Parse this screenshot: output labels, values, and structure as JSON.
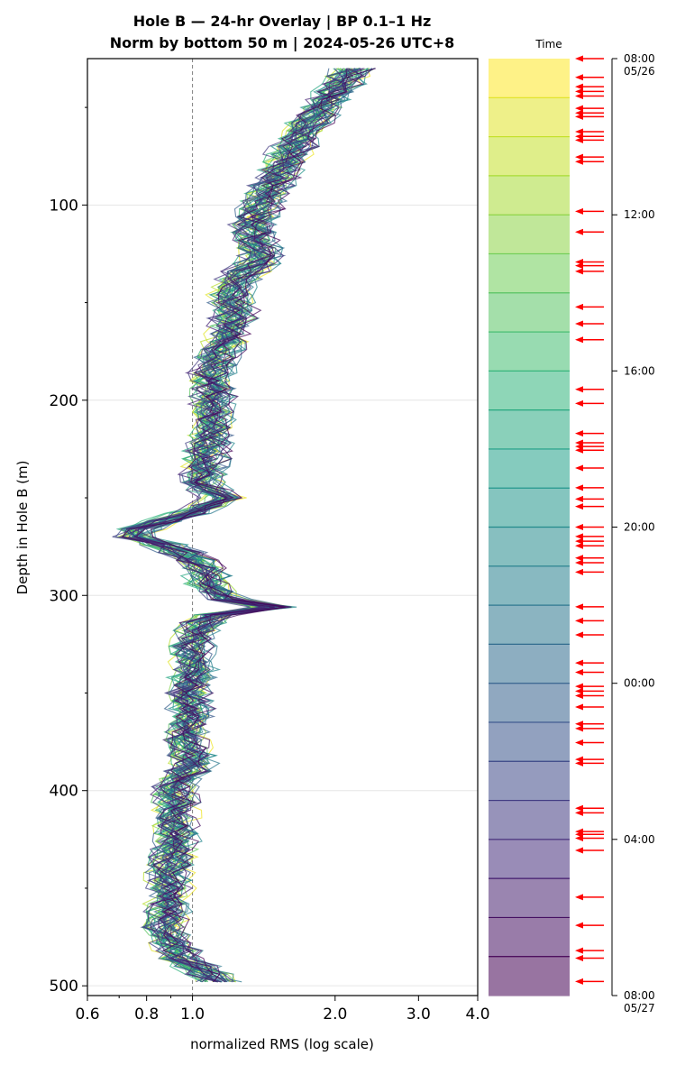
{
  "chart_data": {
    "type": "line",
    "title_line1": "Hole B — 24-hr Overlay  |  BP 0.1–1 Hz",
    "title_line2": "Norm by bottom 50 m  |  2024-05-26 UTC+8",
    "xlabel": "normalized RMS  (log scale)",
    "ylabel": "Depth in Hole B (m)",
    "x_scale": "log",
    "xlim": [
      0.6,
      4.0
    ],
    "ylim": [
      505,
      25
    ],
    "y_inverted": true,
    "grid": "horizontal at major ticks",
    "x_ticks": [
      {
        "value": 0.6,
        "label": "0.6"
      },
      {
        "value": 0.8,
        "label": "0.8"
      },
      {
        "value": 1.0,
        "label": "1.0"
      },
      {
        "value": 2.0,
        "label": "2.0"
      },
      {
        "value": 3.0,
        "label": "3.0"
      },
      {
        "value": 4.0,
        "label": "4.0"
      }
    ],
    "y_ticks": [
      {
        "value": 100,
        "label": "100"
      },
      {
        "value": 200,
        "label": "200"
      },
      {
        "value": 300,
        "label": "300"
      },
      {
        "value": 400,
        "label": "400"
      },
      {
        "value": 500,
        "label": "500"
      }
    ],
    "reference_line_x": 1.0,
    "colormap": "viridis",
    "series_count": 48,
    "profile": {
      "depth": [
        30,
        45,
        60,
        75,
        90,
        100,
        110,
        120,
        128,
        135,
        145,
        155,
        165,
        175,
        185,
        195,
        205,
        215,
        225,
        235,
        243,
        250,
        256,
        262,
        266,
        270,
        275,
        280,
        285,
        290,
        296,
        302,
        306,
        310,
        318,
        328,
        338,
        350,
        362,
        375,
        385,
        392,
        400,
        410,
        420,
        430,
        440,
        450,
        460,
        470,
        480,
        487,
        492,
        497,
        500
      ],
      "rms": [
        2.2,
        1.95,
        1.75,
        1.6,
        1.48,
        1.4,
        1.35,
        1.38,
        1.42,
        1.28,
        1.2,
        1.24,
        1.2,
        1.15,
        1.1,
        1.12,
        1.1,
        1.12,
        1.08,
        1.07,
        1.05,
        1.15,
        1.05,
        0.88,
        0.78,
        0.76,
        0.9,
        1.0,
        1.05,
        1.08,
        1.1,
        1.2,
        1.5,
        1.12,
        1.02,
        1.0,
        1.02,
        0.98,
        1.0,
        0.97,
        1.02,
        0.96,
        0.92,
        0.93,
        0.92,
        0.93,
        0.9,
        0.9,
        0.89,
        0.88,
        0.92,
        0.96,
        1.06,
        1.12,
        1.15
      ]
    },
    "colorbar": {
      "label": "Time",
      "ticks": [
        {
          "label": "08:00",
          "sublabel": "05/26",
          "frac": 0.0
        },
        {
          "label": "12:00",
          "sublabel": "",
          "frac": 0.1667
        },
        {
          "label": "16:00",
          "sublabel": "",
          "frac": 0.3333
        },
        {
          "label": "20:00",
          "sublabel": "",
          "frac": 0.5
        },
        {
          "label": "00:00",
          "sublabel": "",
          "frac": 0.6667
        },
        {
          "label": "04:00",
          "sublabel": "",
          "frac": 0.8333
        },
        {
          "label": "08:00",
          "sublabel": "05/27",
          "frac": 1.0
        }
      ],
      "band_count": 24,
      "arrow_fracs": [
        0.0,
        0.02,
        0.03,
        0.035,
        0.04,
        0.053,
        0.058,
        0.062,
        0.078,
        0.083,
        0.087,
        0.105,
        0.11,
        0.163,
        0.185,
        0.217,
        0.221,
        0.227,
        0.265,
        0.283,
        0.3,
        0.353,
        0.368,
        0.4,
        0.41,
        0.414,
        0.418,
        0.437,
        0.458,
        0.47,
        0.478,
        0.5,
        0.51,
        0.515,
        0.52,
        0.533,
        0.538,
        0.548,
        0.585,
        0.6,
        0.615,
        0.645,
        0.655,
        0.67,
        0.675,
        0.68,
        0.692,
        0.71,
        0.715,
        0.73,
        0.748,
        0.752,
        0.8,
        0.805,
        0.825,
        0.828,
        0.832,
        0.845,
        0.895,
        0.925,
        0.952,
        0.96,
        0.985
      ]
    },
    "colors": {
      "arrow": "#ff0000",
      "reference_line": "#808080",
      "grid": "#e6e6e6"
    }
  }
}
